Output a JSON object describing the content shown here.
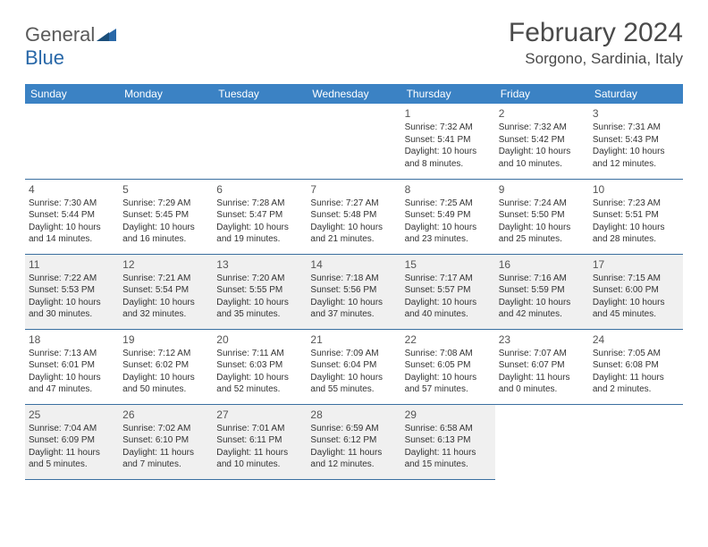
{
  "brand": {
    "part1": "General",
    "part2": "Blue"
  },
  "title": "February 2024",
  "location": "Sorgono, Sardinia, Italy",
  "colors": {
    "header_bg": "#3b82c4",
    "header_text": "#ffffff",
    "border": "#3b6fa0",
    "shaded_bg": "#f0f0f0",
    "brand_gray": "#5a5a5a",
    "brand_blue": "#2968a8"
  },
  "day_headers": [
    "Sunday",
    "Monday",
    "Tuesday",
    "Wednesday",
    "Thursday",
    "Friday",
    "Saturday"
  ],
  "weeks": [
    [
      null,
      null,
      null,
      null,
      {
        "n": "1",
        "sr": "7:32 AM",
        "ss": "5:41 PM",
        "dh": "10",
        "dm": "8"
      },
      {
        "n": "2",
        "sr": "7:32 AM",
        "ss": "5:42 PM",
        "dh": "10",
        "dm": "10"
      },
      {
        "n": "3",
        "sr": "7:31 AM",
        "ss": "5:43 PM",
        "dh": "10",
        "dm": "12"
      }
    ],
    [
      {
        "n": "4",
        "sr": "7:30 AM",
        "ss": "5:44 PM",
        "dh": "10",
        "dm": "14"
      },
      {
        "n": "5",
        "sr": "7:29 AM",
        "ss": "5:45 PM",
        "dh": "10",
        "dm": "16"
      },
      {
        "n": "6",
        "sr": "7:28 AM",
        "ss": "5:47 PM",
        "dh": "10",
        "dm": "19"
      },
      {
        "n": "7",
        "sr": "7:27 AM",
        "ss": "5:48 PM",
        "dh": "10",
        "dm": "21"
      },
      {
        "n": "8",
        "sr": "7:25 AM",
        "ss": "5:49 PM",
        "dh": "10",
        "dm": "23"
      },
      {
        "n": "9",
        "sr": "7:24 AM",
        "ss": "5:50 PM",
        "dh": "10",
        "dm": "25"
      },
      {
        "n": "10",
        "sr": "7:23 AM",
        "ss": "5:51 PM",
        "dh": "10",
        "dm": "28"
      }
    ],
    [
      {
        "n": "11",
        "sr": "7:22 AM",
        "ss": "5:53 PM",
        "dh": "10",
        "dm": "30"
      },
      {
        "n": "12",
        "sr": "7:21 AM",
        "ss": "5:54 PM",
        "dh": "10",
        "dm": "32"
      },
      {
        "n": "13",
        "sr": "7:20 AM",
        "ss": "5:55 PM",
        "dh": "10",
        "dm": "35"
      },
      {
        "n": "14",
        "sr": "7:18 AM",
        "ss": "5:56 PM",
        "dh": "10",
        "dm": "37"
      },
      {
        "n": "15",
        "sr": "7:17 AM",
        "ss": "5:57 PM",
        "dh": "10",
        "dm": "40"
      },
      {
        "n": "16",
        "sr": "7:16 AM",
        "ss": "5:59 PM",
        "dh": "10",
        "dm": "42"
      },
      {
        "n": "17",
        "sr": "7:15 AM",
        "ss": "6:00 PM",
        "dh": "10",
        "dm": "45"
      }
    ],
    [
      {
        "n": "18",
        "sr": "7:13 AM",
        "ss": "6:01 PM",
        "dh": "10",
        "dm": "47"
      },
      {
        "n": "19",
        "sr": "7:12 AM",
        "ss": "6:02 PM",
        "dh": "10",
        "dm": "50"
      },
      {
        "n": "20",
        "sr": "7:11 AM",
        "ss": "6:03 PM",
        "dh": "10",
        "dm": "52"
      },
      {
        "n": "21",
        "sr": "7:09 AM",
        "ss": "6:04 PM",
        "dh": "10",
        "dm": "55"
      },
      {
        "n": "22",
        "sr": "7:08 AM",
        "ss": "6:05 PM",
        "dh": "10",
        "dm": "57"
      },
      {
        "n": "23",
        "sr": "7:07 AM",
        "ss": "6:07 PM",
        "dh": "11",
        "dm": "0"
      },
      {
        "n": "24",
        "sr": "7:05 AM",
        "ss": "6:08 PM",
        "dh": "11",
        "dm": "2"
      }
    ],
    [
      {
        "n": "25",
        "sr": "7:04 AM",
        "ss": "6:09 PM",
        "dh": "11",
        "dm": "5"
      },
      {
        "n": "26",
        "sr": "7:02 AM",
        "ss": "6:10 PM",
        "dh": "11",
        "dm": "7"
      },
      {
        "n": "27",
        "sr": "7:01 AM",
        "ss": "6:11 PM",
        "dh": "11",
        "dm": "10"
      },
      {
        "n": "28",
        "sr": "6:59 AM",
        "ss": "6:12 PM",
        "dh": "11",
        "dm": "12"
      },
      {
        "n": "29",
        "sr": "6:58 AM",
        "ss": "6:13 PM",
        "dh": "11",
        "dm": "15"
      },
      null,
      null
    ]
  ],
  "shaded_rows": [
    2,
    4
  ],
  "labels": {
    "sunrise": "Sunrise:",
    "sunset": "Sunset:",
    "daylight": "Daylight:",
    "hours": "hours",
    "and": "and",
    "minutes": "minutes."
  }
}
